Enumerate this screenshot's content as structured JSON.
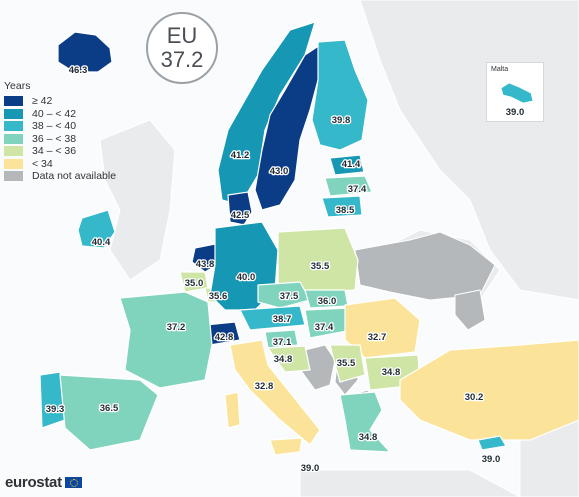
{
  "badge": {
    "line1": "EU",
    "line2": "37.2"
  },
  "legend": {
    "title": "Years",
    "items": [
      {
        "label": "≥ 42",
        "color": "#0b3c86"
      },
      {
        "label": "40 – < 42",
        "color": "#1697b4"
      },
      {
        "label": "38 – < 40",
        "color": "#35b8c9"
      },
      {
        "label": "36 – < 38",
        "color": "#80d4be"
      },
      {
        "label": "34 – < 36",
        "color": "#cfe5a5"
      },
      {
        "label": "< 34",
        "color": "#fbe49a"
      },
      {
        "label": "Data not available",
        "color": "#b4b8bb"
      }
    ]
  },
  "inset": {
    "title": "Malta",
    "value": "39.0"
  },
  "brand": "eurostat",
  "colors": {
    "ge42": "#0b3c86",
    "c40": "#1697b4",
    "c38": "#35b8c9",
    "c36": "#80d4be",
    "c34": "#cfe5a5",
    "lt34": "#fbe49a",
    "na": "#b4b8bb",
    "nonEU": "#e9ebed"
  },
  "regions": [
    {
      "id": "iceland",
      "value": "46.3"
    },
    {
      "id": "norway",
      "value": "41.2"
    },
    {
      "id": "sweden",
      "value": "43.0"
    },
    {
      "id": "finland",
      "value": "39.8"
    },
    {
      "id": "estonia",
      "value": "41.4"
    },
    {
      "id": "latvia",
      "value": "37.4"
    },
    {
      "id": "lithuania",
      "value": "38.5"
    },
    {
      "id": "denmark",
      "value": "42.5"
    },
    {
      "id": "ireland",
      "value": "40.4"
    },
    {
      "id": "netherlands",
      "value": "43.8"
    },
    {
      "id": "belgium",
      "value": "35.0"
    },
    {
      "id": "luxembourg",
      "value": "35.6"
    },
    {
      "id": "germany",
      "value": "40.0"
    },
    {
      "id": "poland",
      "value": "35.5"
    },
    {
      "id": "czechia",
      "value": "37.5"
    },
    {
      "id": "slovakia",
      "value": "36.0"
    },
    {
      "id": "austria",
      "value": "38.7"
    },
    {
      "id": "hungary",
      "value": "37.4"
    },
    {
      "id": "switzerland",
      "value": "42.8"
    },
    {
      "id": "slovenia",
      "value": "37.1"
    },
    {
      "id": "croatia",
      "value": "34.8"
    },
    {
      "id": "romania",
      "value": "32.7"
    },
    {
      "id": "serbia",
      "value": "35.5"
    },
    {
      "id": "bulgaria",
      "value": "34.8"
    },
    {
      "id": "france",
      "value": "37.2"
    },
    {
      "id": "portugal",
      "value": "39.3"
    },
    {
      "id": "spain",
      "value": "36.5"
    },
    {
      "id": "italy",
      "value": "32.8"
    },
    {
      "id": "greece",
      "value": "34.8"
    },
    {
      "id": "turkey",
      "value": "30.2"
    },
    {
      "id": "cyprus",
      "value": "39.0"
    },
    {
      "id": "sicily-area",
      "value": "39.0"
    }
  ]
}
